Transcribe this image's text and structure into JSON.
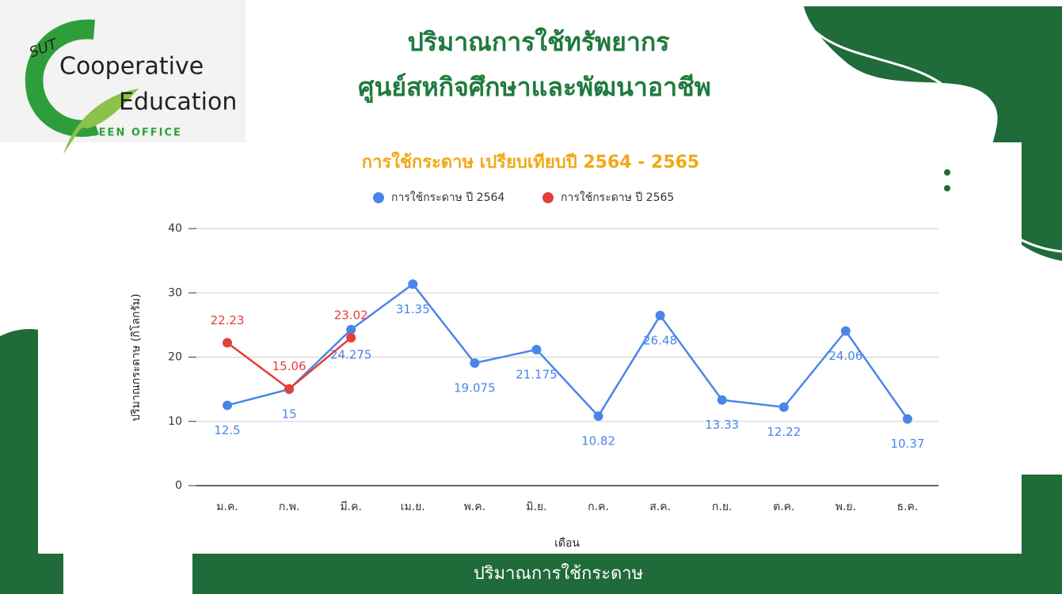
{
  "header": {
    "title_line1": "ปริมาณการใช้ทรัพยากร",
    "title_line2": "ศูนย์สหกิจศึกษาและพัฒนาอาชีพ"
  },
  "logo": {
    "mark": "SUT",
    "line1": "Cooperative",
    "line2": "Education",
    "tagline": "GREEN OFFICE"
  },
  "footer": {
    "caption": "ปริมาณการใช้กระดาษ"
  },
  "chart_data": {
    "type": "line",
    "title": "การใช้กระดาษ เปรียบเทียบปี 2564 - 2565",
    "x_label": "เดือน",
    "y_label": "ปริมาณกระดาษ (กิโลกรัม)",
    "categories": [
      "ม.ค.",
      "ก.พ.",
      "มี.ค.",
      "เม.ย.",
      "พ.ค.",
      "มิ.ย.",
      "ก.ค.",
      "ส.ค.",
      "ก.ย.",
      "ต.ค.",
      "พ.ย.",
      "ธ.ค."
    ],
    "series": [
      {
        "name": "การใช้กระดาษ ปี 2564",
        "color": "#4a86e8",
        "values": [
          12.5,
          15,
          24.275,
          31.35,
          19.075,
          21.175,
          10.82,
          26.48,
          13.33,
          12.22,
          24.06,
          10.37
        ]
      },
      {
        "name": "การใช้กระดาษ ปี 2565",
        "color": "#e2403a",
        "values": [
          22.23,
          15.06,
          23.02,
          null,
          null,
          null,
          null,
          null,
          null,
          null,
          null,
          null
        ]
      }
    ],
    "ylim": [
      0,
      40
    ],
    "yticks": [
      0,
      10,
      20,
      30,
      40
    ],
    "grid": true,
    "legend": "top"
  }
}
